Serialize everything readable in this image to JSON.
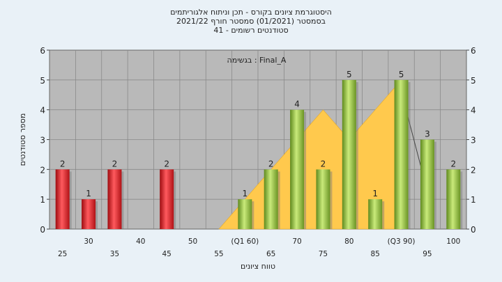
{
  "chart_data": {
    "type": "bar",
    "title": [
      "היסטוגרמת ציונים בקורס - תכן וניתוח אלגוריתמים",
      "בסמסטר  (01/2021)  סמסטר חורף 2021/22",
      "סטודנטים רשומים - 41"
    ],
    "annotation": "בגשימה : Final_A",
    "xlabel": "טווח ציונים",
    "ylabel": "מספר סטודנטים",
    "ylim": [
      0,
      6
    ],
    "yticks": [
      0,
      1,
      2,
      3,
      4,
      5,
      6
    ],
    "grid": true,
    "categories": [
      "25",
      "30",
      "35",
      "40",
      "45",
      "50",
      "55",
      "(Q1 60)",
      "65",
      "70",
      "75",
      "80",
      "85",
      "(Q3 90)",
      "95",
      "100"
    ],
    "values": [
      2,
      1,
      2,
      0,
      2,
      0,
      0,
      1,
      2,
      4,
      2,
      5,
      1,
      5,
      3,
      2
    ],
    "value_labels": [
      "2",
      "1",
      "2",
      "",
      "2",
      "",
      "",
      "1",
      "2",
      "4",
      "2",
      "5",
      "1",
      "5",
      "3",
      "2"
    ],
    "bar_colors": [
      "#e8242a",
      "#e8242a",
      "#e8242a",
      "#e8242a",
      "#e8242a",
      "#e8242a",
      "#e8242a",
      "#8fc23a",
      "#8fc23a",
      "#8fc23a",
      "#8fc23a",
      "#8fc23a",
      "#8fc23a",
      "#8fc23a",
      "#8fc23a",
      "#8fc23a"
    ],
    "area_series": {
      "color": "#ffc94d",
      "x_index": [
        6,
        7,
        8,
        9,
        10,
        11,
        12,
        13
      ],
      "values": [
        0,
        1,
        2,
        3,
        4,
        3,
        4,
        5
      ]
    },
    "colors": {
      "plot_background": "#b9b9b9",
      "page_background": "#e9f1f7"
    }
  }
}
